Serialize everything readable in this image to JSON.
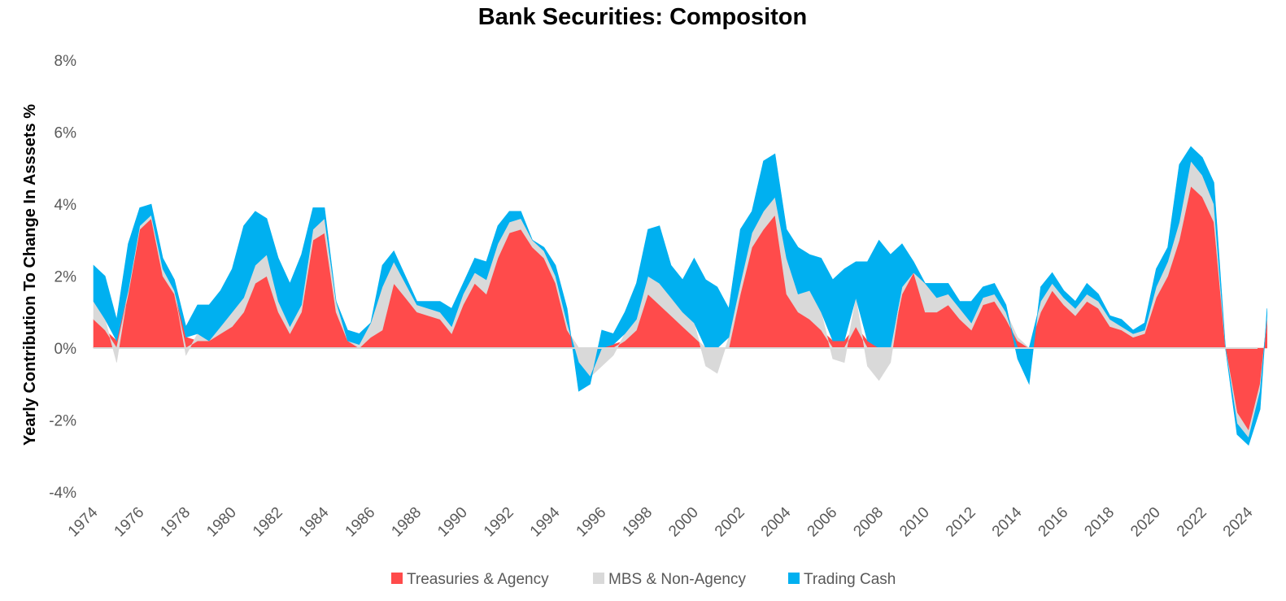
{
  "chart_data": {
    "type": "area",
    "stacked": true,
    "title": "Bank Securities: Compositon",
    "xlabel": "",
    "ylabel": "Yearly Contribution To Change In Asssets %",
    "xlim": [
      1974,
      2025
    ],
    "ylim": [
      -4,
      8
    ],
    "yticks": [
      -4,
      -2,
      0,
      2,
      4,
      6,
      8
    ],
    "ytick_labels": [
      "-4%",
      "-2%",
      "0%",
      "2%",
      "4%",
      "6%",
      "8%"
    ],
    "xtick_labels": [
      "1974",
      "1976",
      "1978",
      "1980",
      "1982",
      "1984",
      "1986",
      "1988",
      "1990",
      "1992",
      "1994",
      "1996",
      "1998",
      "2000",
      "2002",
      "2004",
      "2006",
      "2008",
      "2010",
      "2012",
      "2014",
      "2016",
      "2018",
      "2020",
      "2022",
      "2024"
    ],
    "grid": false,
    "legend": "bottom",
    "x": [
      1974.0,
      1974.5,
      1975.0,
      1975.5,
      1976.0,
      1976.5,
      1977.0,
      1977.5,
      1978.0,
      1978.5,
      1979.0,
      1979.5,
      1980.0,
      1980.5,
      1981.0,
      1981.5,
      1982.0,
      1982.5,
      1983.0,
      1983.5,
      1984.0,
      1984.5,
      1985.0,
      1985.5,
      1986.0,
      1986.5,
      1987.0,
      1987.5,
      1988.0,
      1988.5,
      1989.0,
      1989.5,
      1990.0,
      1990.5,
      1991.0,
      1991.5,
      1992.0,
      1992.5,
      1993.0,
      1993.5,
      1994.0,
      1994.5,
      1995.0,
      1995.5,
      1996.0,
      1996.5,
      1997.0,
      1997.5,
      1998.0,
      1998.5,
      1999.0,
      1999.5,
      2000.0,
      2000.5,
      2001.0,
      2001.5,
      2002.0,
      2002.5,
      2003.0,
      2003.5,
      2004.0,
      2004.5,
      2005.0,
      2005.5,
      2006.0,
      2006.5,
      2007.0,
      2007.5,
      2008.0,
      2008.5,
      2009.0,
      2009.5,
      2010.0,
      2010.5,
      2011.0,
      2011.5,
      2012.0,
      2012.5,
      2013.0,
      2013.5,
      2014.0,
      2014.5,
      2015.0,
      2015.5,
      2016.0,
      2016.5,
      2017.0,
      2017.5,
      2018.0,
      2018.5,
      2019.0,
      2019.5,
      2020.0,
      2020.5,
      2021.0,
      2021.5,
      2022.0,
      2022.5,
      2023.0,
      2023.5,
      2024.0,
      2024.5,
      2024.8
    ],
    "series": [
      {
        "name": "Treasuries & Agency",
        "color": "#ff4b4b",
        "values": [
          0.8,
          0.5,
          0.2,
          1.5,
          3.3,
          3.6,
          2.0,
          1.5,
          0.3,
          0.2,
          0.2,
          0.4,
          0.6,
          1.0,
          1.8,
          2.0,
          1.0,
          0.4,
          1.0,
          3.0,
          3.2,
          1.0,
          0.2,
          0.0,
          0.3,
          0.5,
          1.8,
          1.4,
          1.0,
          0.9,
          0.8,
          0.4,
          1.2,
          1.8,
          1.5,
          2.5,
          3.2,
          3.3,
          2.8,
          2.5,
          1.8,
          0.5,
          0.0,
          0.0,
          0.0,
          0.1,
          0.2,
          0.5,
          1.5,
          1.2,
          0.9,
          0.6,
          0.3,
          0.0,
          0.0,
          0.0,
          1.5,
          2.8,
          3.3,
          3.7,
          1.5,
          1.0,
          0.8,
          0.5,
          0.2,
          0.2,
          0.6,
          0.2,
          0.0,
          0.0,
          1.5,
          2.1,
          1.0,
          1.0,
          1.2,
          0.8,
          0.5,
          1.2,
          1.3,
          0.8,
          0.2,
          0.0,
          1.0,
          1.6,
          1.2,
          0.9,
          1.3,
          1.1,
          0.6,
          0.5,
          0.3,
          0.4,
          1.4,
          2.0,
          3.0,
          4.5,
          4.2,
          3.5,
          0.0,
          -1.8,
          -2.3,
          -1.0,
          0.8
        ]
      },
      {
        "name": "MBS & Non-Agency",
        "color": "#d9d9d9",
        "values": [
          0.5,
          0.3,
          -0.4,
          0.1,
          0.1,
          0.1,
          0.2,
          0.1,
          -0.2,
          0.2,
          0.0,
          0.2,
          0.4,
          0.4,
          0.5,
          0.6,
          0.3,
          0.2,
          0.2,
          0.3,
          0.4,
          0.3,
          0.0,
          0.1,
          0.4,
          1.2,
          0.6,
          0.4,
          0.2,
          0.2,
          0.2,
          0.2,
          0.3,
          0.3,
          0.4,
          0.4,
          0.3,
          0.3,
          0.2,
          0.2,
          0.2,
          0.2,
          -0.4,
          -0.8,
          -0.5,
          -0.2,
          0.2,
          0.3,
          0.5,
          0.6,
          0.5,
          0.4,
          0.4,
          -0.5,
          -0.7,
          0.3,
          0.3,
          0.4,
          0.5,
          0.5,
          1.0,
          0.5,
          0.8,
          0.5,
          -0.3,
          -0.4,
          0.8,
          -0.5,
          -0.9,
          -0.4,
          0.2,
          0.0,
          0.8,
          0.4,
          0.3,
          0.3,
          0.2,
          0.2,
          0.2,
          0.2,
          0.1,
          0.0,
          0.3,
          0.2,
          0.2,
          0.2,
          0.2,
          0.2,
          0.2,
          0.1,
          0.1,
          0.1,
          0.3,
          0.4,
          0.5,
          0.7,
          0.6,
          0.5,
          0.0,
          -0.3,
          -0.2,
          -0.2,
          0.1
        ]
      },
      {
        "name": "Trading Cash",
        "color": "#00b0f0",
        "values": [
          1.0,
          1.2,
          0.6,
          1.3,
          0.5,
          0.3,
          0.3,
          0.3,
          0.3,
          0.8,
          1.0,
          1.0,
          1.2,
          2.0,
          1.5,
          1.0,
          1.2,
          1.2,
          1.4,
          0.6,
          0.3,
          0.0,
          0.3,
          0.3,
          0.0,
          0.6,
          0.3,
          0.2,
          0.1,
          0.2,
          0.3,
          0.5,
          0.3,
          0.4,
          0.5,
          0.5,
          0.3,
          0.2,
          0.0,
          0.1,
          0.3,
          0.4,
          -0.8,
          -0.2,
          0.5,
          0.3,
          0.6,
          1.0,
          1.3,
          1.6,
          0.9,
          0.9,
          1.8,
          1.9,
          1.7,
          0.8,
          1.5,
          0.6,
          1.4,
          1.2,
          0.8,
          1.3,
          1.0,
          1.5,
          1.7,
          2.0,
          1.0,
          2.2,
          3.0,
          2.6,
          1.2,
          0.3,
          0.0,
          0.4,
          0.3,
          0.2,
          0.6,
          0.3,
          0.3,
          0.2,
          -0.3,
          -1.0,
          0.4,
          0.3,
          0.2,
          0.2,
          0.3,
          0.2,
          0.1,
          0.2,
          0.1,
          0.2,
          0.5,
          0.4,
          1.6,
          0.4,
          0.5,
          0.6,
          0.0,
          -0.3,
          -0.2,
          -0.5,
          0.2
        ]
      }
    ]
  }
}
